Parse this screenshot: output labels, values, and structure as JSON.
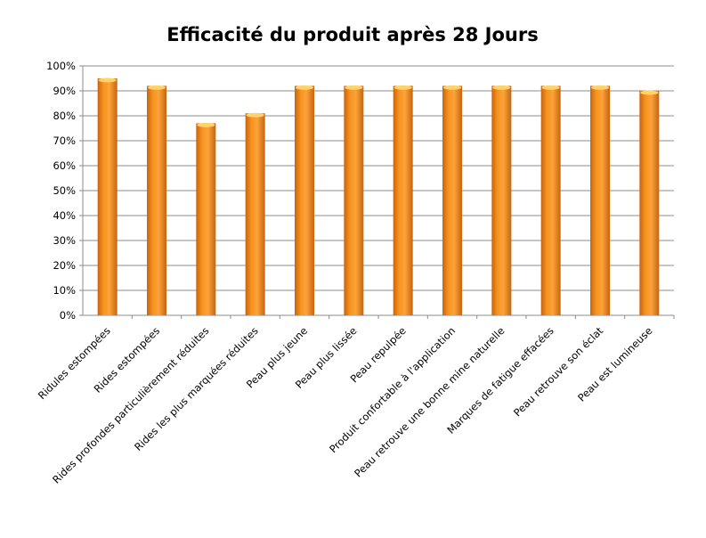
{
  "chart_data": {
    "type": "bar",
    "title": "Efficacité du produit après 28 Jours",
    "xlabel": "",
    "ylabel": "",
    "ylim": [
      0,
      100
    ],
    "yticks": [
      "0%",
      "10%",
      "20%",
      "30%",
      "40%",
      "50%",
      "60%",
      "70%",
      "80%",
      "90%",
      "100%"
    ],
    "grid": true,
    "categories": [
      "Ridules estompées",
      "Rides estompées",
      "Rides profondes particulièrement réduites",
      "Rides les plus marquées réduites",
      "Peau plus jeune",
      "Peau plus lissée",
      "Peau repulpée",
      "Produit confortable à l'application",
      "Peau retrouve une bonne mine naturelle",
      "Marques de fatigue effacées",
      "Peau retrouve son éclat",
      "Peau est lumineuse"
    ],
    "values": [
      95,
      92,
      77,
      81,
      92,
      92,
      92,
      92,
      92,
      92,
      92,
      90
    ],
    "bar_color": "#F7931E"
  }
}
